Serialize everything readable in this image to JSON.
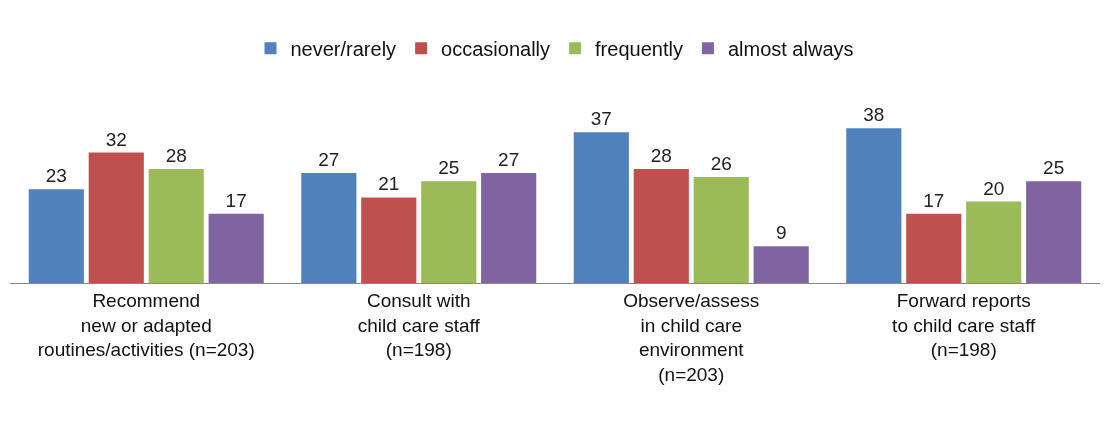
{
  "chart_data": {
    "type": "bar",
    "categories": [
      "Recommend\nnew or adapted\nroutines/activities (n=203)",
      "Consult with\nchild care staff\n(n=198)",
      "Observe/assess\nin child care\nenvironment\n(n=203)",
      "Forward reports\nto child care staff\n(n=198)"
    ],
    "series": [
      {
        "name": "never/rarely",
        "color": "#4f81bd",
        "values": [
          23,
          27,
          37,
          38
        ]
      },
      {
        "name": "occasionally",
        "color": "#c0504d",
        "values": [
          32,
          21,
          28,
          17
        ]
      },
      {
        "name": "frequently",
        "color": "#9bbb59",
        "values": [
          28,
          25,
          26,
          20
        ]
      },
      {
        "name": "almost always",
        "color": "#8064a2",
        "values": [
          17,
          27,
          9,
          25
        ]
      }
    ],
    "data_labels": true,
    "legend": "top",
    "grid": false
  }
}
